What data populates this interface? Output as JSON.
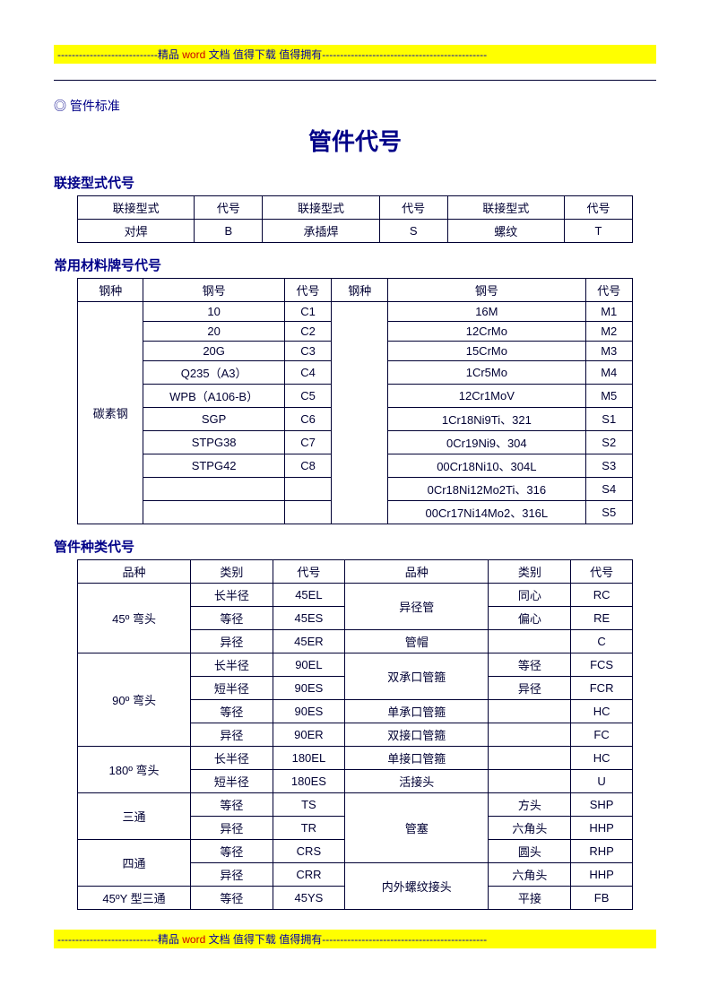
{
  "banner": {
    "dashes_left": "----------------------------",
    "text_prefix": "精品",
    "text_word": " word ",
    "text_suffix": "文档 值得下载 值得拥有",
    "dashes_right": "----------------------------------------------"
  },
  "bullet_label": "◎  管件标准",
  "main_title": "管件代号",
  "section1": {
    "title": "联接型式代号",
    "headers": [
      "联接型式",
      "代号",
      "联接型式",
      "代号",
      "联接型式",
      "代号"
    ],
    "row": [
      "对焊",
      "B",
      "承插焊",
      "S",
      "螺纹",
      "T"
    ]
  },
  "section2": {
    "title": "常用材料牌号代号",
    "headers": [
      "钢种",
      "钢号",
      "代号",
      "钢种",
      "钢号",
      "代号"
    ],
    "left_species": "碳素钢",
    "rows": [
      [
        "10",
        "C1",
        "",
        "16M",
        "M1"
      ],
      [
        "20",
        "C2",
        "",
        "12CrMo",
        "M2"
      ],
      [
        "20G",
        "C3",
        "",
        "15CrMo",
        "M3"
      ],
      [
        "Q235（A3）",
        "C4",
        "",
        "1Cr5Mo",
        "M4"
      ],
      [
        "WPB（A106-B）",
        "C5",
        "",
        "12Cr1MoV",
        "M5"
      ],
      [
        "SGP",
        "C6",
        "",
        "1Cr18Ni9Ti、321",
        "S1"
      ],
      [
        "STPG38",
        "C7",
        "",
        "0Cr19Ni9、304",
        "S2"
      ],
      [
        "STPG42",
        "C8",
        "",
        "00Cr18Ni10、304L",
        "S3"
      ],
      [
        "",
        "",
        "",
        "0Cr18Ni12Mo2Ti、316",
        "S4"
      ],
      [
        "",
        "",
        "",
        "00Cr17Ni14Mo2、316L",
        "S5"
      ]
    ]
  },
  "section3": {
    "title": "管件种类代号",
    "headers": [
      "品种",
      "类别",
      "代号",
      "品种",
      "类别",
      "代号"
    ],
    "rows_left": [
      {
        "pin": "45º 弯头",
        "span": 3,
        "cat": "长半径",
        "code": "45EL"
      },
      {
        "cat": "等径",
        "code": "45ES"
      },
      {
        "cat": "异径",
        "code": "45ER"
      },
      {
        "pin": "90º 弯头",
        "span": 4,
        "cat": "长半径",
        "code": "90EL"
      },
      {
        "cat": "短半径",
        "code": "90ES"
      },
      {
        "cat": "等径",
        "code": "90ES"
      },
      {
        "cat": "异径",
        "code": "90ER"
      },
      {
        "pin": "180º 弯头",
        "span": 2,
        "cat": "长半径",
        "code": "180EL"
      },
      {
        "cat": "短半径",
        "code": "180ES"
      },
      {
        "pin": "三通",
        "span": 2,
        "cat": "等径",
        "code": "TS"
      },
      {
        "cat": "异径",
        "code": "TR"
      },
      {
        "pin": "四通",
        "span": 2,
        "cat": "等径",
        "code": "CRS"
      },
      {
        "cat": "异径",
        "code": "CRR"
      },
      {
        "pin": "45ºY 型三通",
        "span": 1,
        "cat": "等径",
        "code": "45YS"
      }
    ],
    "rows_right": [
      {
        "pin": "异径管",
        "span": 2,
        "cat": "同心",
        "code": "RC"
      },
      {
        "cat": "偏心",
        "code": "RE"
      },
      {
        "pin": "管帽",
        "span": 1,
        "cat": "",
        "code": "C"
      },
      {
        "pin": "双承口管箍",
        "span": 2,
        "cat": "等径",
        "code": "FCS"
      },
      {
        "cat": "异径",
        "code": "FCR"
      },
      {
        "pin": "单承口管箍",
        "span": 1,
        "cat": "",
        "code": "HC"
      },
      {
        "pin": "双接口管箍",
        "span": 1,
        "cat": "",
        "code": "FC"
      },
      {
        "pin": "单接口管箍",
        "span": 1,
        "cat": "",
        "code": "HC"
      },
      {
        "pin": "活接头",
        "span": 1,
        "cat": "",
        "code": "U"
      },
      {
        "pin": "管塞",
        "span": 3,
        "cat": "方头",
        "code": "SHP"
      },
      {
        "cat": "六角头",
        "code": "HHP"
      },
      {
        "cat": "圆头",
        "code": "RHP"
      },
      {
        "pin": "内外螺纹接头",
        "span": 2,
        "cat": "六角头",
        "code": "HHP"
      },
      {
        "cat": "平接",
        "code": "FB"
      }
    ]
  },
  "colors": {
    "heading": "#000088",
    "body": "#000033",
    "highlight_bg": "#ffff00"
  },
  "col_widths": {
    "t1": [
      120,
      70,
      120,
      70,
      120,
      70
    ],
    "t2": [
      70,
      150,
      50,
      60,
      210,
      50
    ],
    "t3": [
      110,
      80,
      70,
      140,
      80,
      60
    ]
  }
}
